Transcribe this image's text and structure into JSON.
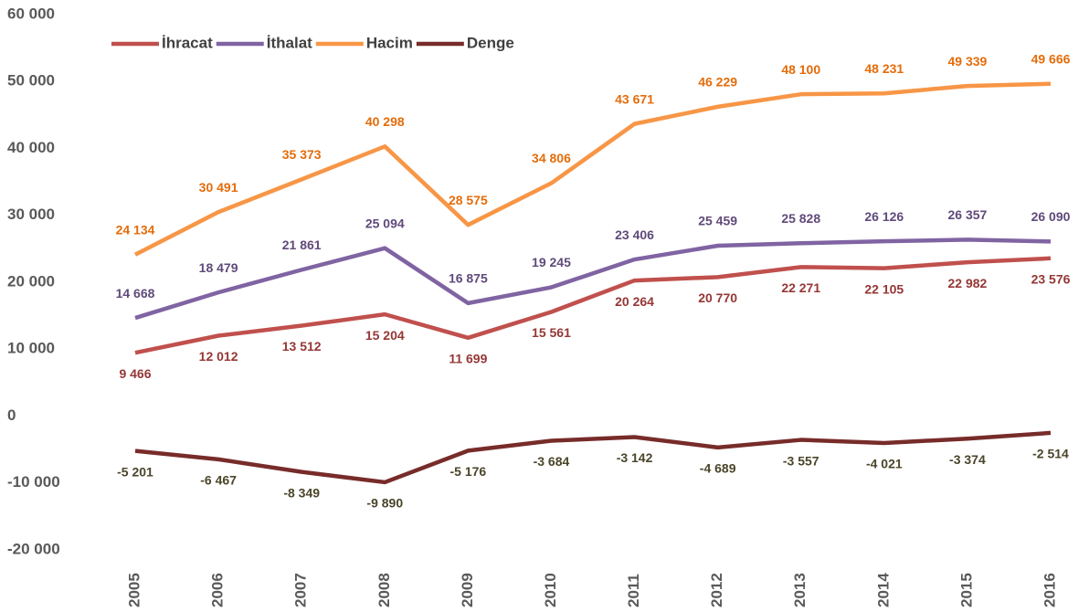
{
  "chart_data": {
    "type": "line",
    "categories": [
      "2005",
      "2006",
      "2007",
      "2008",
      "2009",
      "2010",
      "2011",
      "2012",
      "2013",
      "2014",
      "2015",
      "2016"
    ],
    "series": [
      {
        "name": "İhracat",
        "color": "#c0504d",
        "label_color": "#953735",
        "label_position": "below",
        "values": [
          9466,
          12012,
          13512,
          15204,
          11699,
          15561,
          20264,
          20770,
          22271,
          22105,
          22982,
          23576
        ],
        "value_labels": [
          "9 466",
          "12 012",
          "13 512",
          "15 204",
          "11 699",
          "15 561",
          "20 264",
          "20 770",
          "22 271",
          "22 105",
          "22 982",
          "23 576"
        ]
      },
      {
        "name": "İthalat",
        "color": "#8064a2",
        "label_color": "#604a7b",
        "label_position": "above",
        "values": [
          14668,
          18479,
          21861,
          25094,
          16875,
          19245,
          23406,
          25459,
          25828,
          26126,
          26357,
          26090
        ],
        "value_labels": [
          "14 668",
          "18 479",
          "21 861",
          "25 094",
          "16 875",
          "19 245",
          "23 406",
          "25 459",
          "25 828",
          "26 126",
          "26 357",
          "26 090"
        ]
      },
      {
        "name": "Hacim",
        "color": "#f79646",
        "label_color": "#e46c0a",
        "label_position": "above",
        "values": [
          24134,
          30491,
          35373,
          40298,
          28575,
          34806,
          43671,
          46229,
          48100,
          48231,
          49339,
          49666
        ],
        "value_labels": [
          "24 134",
          "30 491",
          "35 373",
          "40 298",
          "28 575",
          "34 806",
          "43 671",
          "46 229",
          "48 100",
          "48 231",
          "49 339",
          "49 666"
        ]
      },
      {
        "name": "Denge",
        "color": "#772c2a",
        "label_color": "#4a452a",
        "label_position": "below",
        "values": [
          -5201,
          -6467,
          -8349,
          -9890,
          -5176,
          -3684,
          -3142,
          -4689,
          -3557,
          -4021,
          -3374,
          -2514
        ],
        "value_labels": [
          "-5 201",
          "-6 467",
          "-8 349",
          "-9 890",
          "-5 176",
          "-3 684",
          "-3 142",
          "-4 689",
          "-3 557",
          "-4 021",
          "-3 374",
          "-2 514"
        ]
      }
    ],
    "ylim": [
      -20000,
      60000
    ],
    "yticks": [
      {
        "value": -20000,
        "label": "-20 000"
      },
      {
        "value": -10000,
        "label": "-10 000"
      },
      0,
      {
        "value": 10000,
        "label": "10 000"
      },
      {
        "value": 20000,
        "label": "20 000"
      },
      {
        "value": 30000,
        "label": "30 000"
      },
      {
        "value": 40000,
        "label": "40 000"
      },
      {
        "value": 50000,
        "label": "50 000"
      },
      {
        "value": 60000,
        "label": "60 000"
      }
    ],
    "grid": false,
    "legend": "top-left"
  }
}
